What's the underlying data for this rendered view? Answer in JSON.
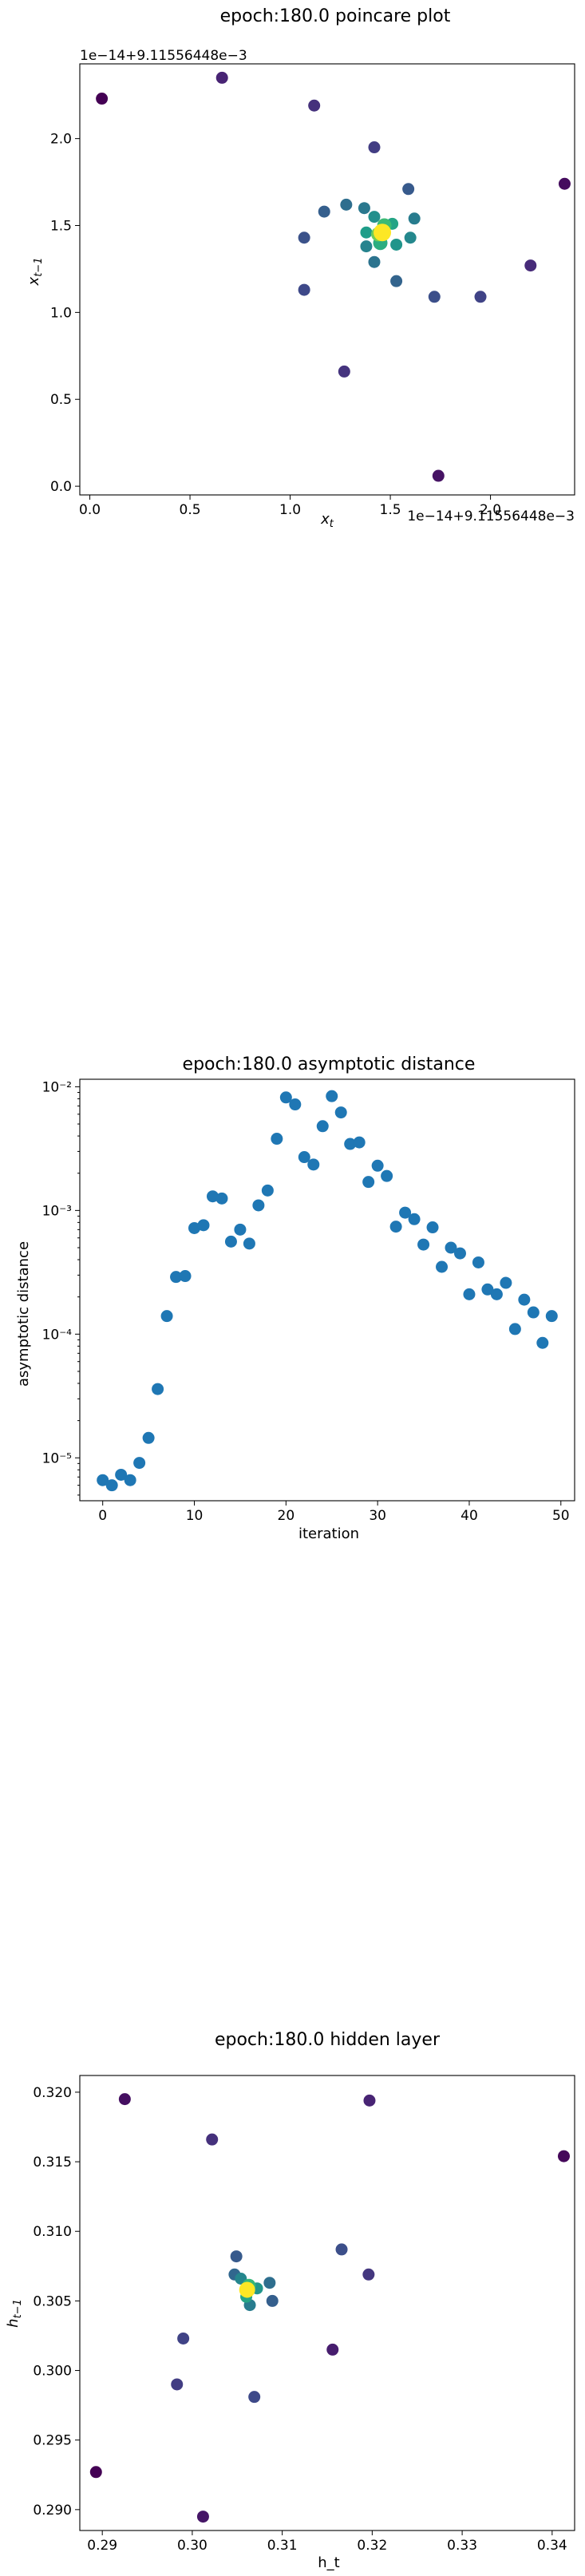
{
  "chart_data": [
    {
      "type": "scatter",
      "title": "epoch:180.0 poincare plot",
      "xlabel": "x_t",
      "ylabel": "x_{t-1}",
      "x_offset_text": "1e−14+9.11556448e−3",
      "y_offset_text": "1e−14+9.11556448e−3",
      "xlim": [
        -0.05,
        2.42
      ],
      "ylim": [
        -0.05,
        2.43
      ],
      "xticks": [
        0.0,
        0.5,
        1.0,
        1.5,
        2.0
      ],
      "xtick_labels": [
        "0.0",
        "0.5",
        "1.0",
        "1.5",
        "2.0"
      ],
      "yticks": [
        0.0,
        0.5,
        1.0,
        1.5,
        2.0
      ],
      "ytick_labels": [
        "0.0",
        "0.5",
        "1.0",
        "1.5",
        "2.0"
      ],
      "colormap": "viridis",
      "points": [
        {
          "x": 0.06,
          "y": 2.23,
          "c": 0.0
        },
        {
          "x": 0.66,
          "y": 2.35,
          "c": 0.1
        },
        {
          "x": 1.12,
          "y": 2.19,
          "c": 0.14
        },
        {
          "x": 1.42,
          "y": 1.95,
          "c": 0.18
        },
        {
          "x": 2.37,
          "y": 1.74,
          "c": 0.03
        },
        {
          "x": 1.74,
          "y": 0.06,
          "c": 0.05
        },
        {
          "x": 2.2,
          "y": 1.27,
          "c": 0.12
        },
        {
          "x": 1.27,
          "y": 0.66,
          "c": 0.15
        },
        {
          "x": 1.95,
          "y": 1.09,
          "c": 0.2
        },
        {
          "x": 1.07,
          "y": 1.13,
          "c": 0.22
        },
        {
          "x": 1.72,
          "y": 1.09,
          "c": 0.24
        },
        {
          "x": 1.07,
          "y": 1.43,
          "c": 0.25
        },
        {
          "x": 1.59,
          "y": 1.71,
          "c": 0.28
        },
        {
          "x": 1.17,
          "y": 1.58,
          "c": 0.3
        },
        {
          "x": 1.53,
          "y": 1.18,
          "c": 0.32
        },
        {
          "x": 1.28,
          "y": 1.62,
          "c": 0.36
        },
        {
          "x": 1.42,
          "y": 1.29,
          "c": 0.38
        },
        {
          "x": 1.37,
          "y": 1.6,
          "c": 0.4
        },
        {
          "x": 1.62,
          "y": 1.54,
          "c": 0.42
        },
        {
          "x": 1.38,
          "y": 1.38,
          "c": 0.45
        },
        {
          "x": 1.6,
          "y": 1.43,
          "c": 0.47
        },
        {
          "x": 1.42,
          "y": 1.55,
          "c": 0.5
        },
        {
          "x": 1.53,
          "y": 1.39,
          "c": 0.52
        },
        {
          "x": 1.38,
          "y": 1.46,
          "c": 0.55
        },
        {
          "x": 1.51,
          "y": 1.51,
          "c": 0.58
        },
        {
          "x": 1.45,
          "y": 1.4,
          "c": 0.62
        },
        {
          "x": 1.47,
          "y": 1.5,
          "c": 0.68
        },
        {
          "x": 1.44,
          "y": 1.45,
          "c": 0.78
        },
        {
          "x": 1.46,
          "y": 1.46,
          "c": 1.0
        }
      ]
    },
    {
      "type": "scatter",
      "title": "epoch:180.0 asymptotic distance",
      "xlabel": "iteration",
      "ylabel": "asymptotic distance",
      "yscale": "log",
      "xlim": [
        -2.5,
        51.5
      ],
      "ylim": [
        4.5e-06,
        0.0115
      ],
      "xticks": [
        0,
        10,
        20,
        30,
        40,
        50
      ],
      "xtick_labels": [
        "0",
        "10",
        "20",
        "30",
        "40",
        "50"
      ],
      "yticks": [
        1e-05,
        0.0001,
        0.001,
        0.01
      ],
      "ytick_labels": [
        "10⁻⁵",
        "10⁻⁴",
        "10⁻³",
        "10⁻²"
      ],
      "color": "#1f77b4",
      "x": [
        0,
        1,
        2,
        3,
        4,
        5,
        6,
        7,
        8,
        9,
        10,
        11,
        12,
        13,
        14,
        15,
        16,
        17,
        18,
        19,
        20,
        21,
        22,
        23,
        24,
        25,
        26,
        27,
        28,
        29,
        30,
        31,
        32,
        33,
        34,
        35,
        36,
        37,
        38,
        39,
        40,
        41,
        42,
        43,
        44,
        45,
        46,
        47,
        48,
        49
      ],
      "y": [
        6.6e-06,
        6e-06,
        7.3e-06,
        6.6e-06,
        9.1e-06,
        1.45e-05,
        3.6e-05,
        0.00014,
        0.00029,
        0.000295,
        0.00072,
        0.00076,
        0.0013,
        0.00125,
        0.00056,
        0.0007,
        0.00054,
        0.0011,
        0.00145,
        0.0038,
        0.0082,
        0.0072,
        0.0027,
        0.00235,
        0.0048,
        0.0084,
        0.0062,
        0.00345,
        0.00355,
        0.0017,
        0.0023,
        0.0019,
        0.00074,
        0.00096,
        0.00085,
        0.00053,
        0.00073,
        0.00035,
        0.0005,
        0.00045,
        0.00021,
        0.00038,
        0.00023,
        0.00021,
        0.00026,
        0.00011,
        0.00019,
        0.00015,
        8.5e-05,
        0.00014
      ]
    },
    {
      "type": "scatter",
      "title": "epoch:180.0 hidden layer",
      "xlabel": "h_t",
      "ylabel": "h_{t-1}",
      "xlim": [
        0.2875,
        0.3425
      ],
      "ylim": [
        0.2885,
        0.3212
      ],
      "xticks": [
        0.29,
        0.3,
        0.31,
        0.32,
        0.33,
        0.34
      ],
      "xtick_labels": [
        "0.29",
        "0.30",
        "0.31",
        "0.32",
        "0.33",
        "0.34"
      ],
      "yticks": [
        0.29,
        0.295,
        0.3,
        0.305,
        0.31,
        0.315,
        0.32
      ],
      "ytick_labels": [
        "0.290",
        "0.295",
        "0.300",
        "0.305",
        "0.310",
        "0.315",
        "0.320"
      ],
      "colormap": "viridis",
      "points": [
        {
          "x": 0.2893,
          "y": 0.2927,
          "c": 0.0
        },
        {
          "x": 0.2925,
          "y": 0.3195,
          "c": 0.04
        },
        {
          "x": 0.3413,
          "y": 0.3154,
          "c": 0.02
        },
        {
          "x": 0.3012,
          "y": 0.2895,
          "c": 0.06
        },
        {
          "x": 0.3156,
          "y": 0.3015,
          "c": 0.08
        },
        {
          "x": 0.3197,
          "y": 0.3194,
          "c": 0.1
        },
        {
          "x": 0.3022,
          "y": 0.3166,
          "c": 0.14
        },
        {
          "x": 0.2983,
          "y": 0.299,
          "c": 0.18
        },
        {
          "x": 0.3196,
          "y": 0.3069,
          "c": 0.16
        },
        {
          "x": 0.299,
          "y": 0.3023,
          "c": 0.2
        },
        {
          "x": 0.3069,
          "y": 0.2981,
          "c": 0.22
        },
        {
          "x": 0.3166,
          "y": 0.3087,
          "c": 0.24
        },
        {
          "x": 0.3049,
          "y": 0.3082,
          "c": 0.28
        },
        {
          "x": 0.3089,
          "y": 0.305,
          "c": 0.3
        },
        {
          "x": 0.3047,
          "y": 0.3069,
          "c": 0.33
        },
        {
          "x": 0.3086,
          "y": 0.3063,
          "c": 0.36
        },
        {
          "x": 0.3064,
          "y": 0.3047,
          "c": 0.42
        },
        {
          "x": 0.3054,
          "y": 0.3066,
          "c": 0.46
        },
        {
          "x": 0.3072,
          "y": 0.3059,
          "c": 0.52
        },
        {
          "x": 0.306,
          "y": 0.3053,
          "c": 0.58
        },
        {
          "x": 0.3063,
          "y": 0.3061,
          "c": 0.66
        },
        {
          "x": 0.3061,
          "y": 0.3058,
          "c": 1.0
        }
      ]
    }
  ]
}
